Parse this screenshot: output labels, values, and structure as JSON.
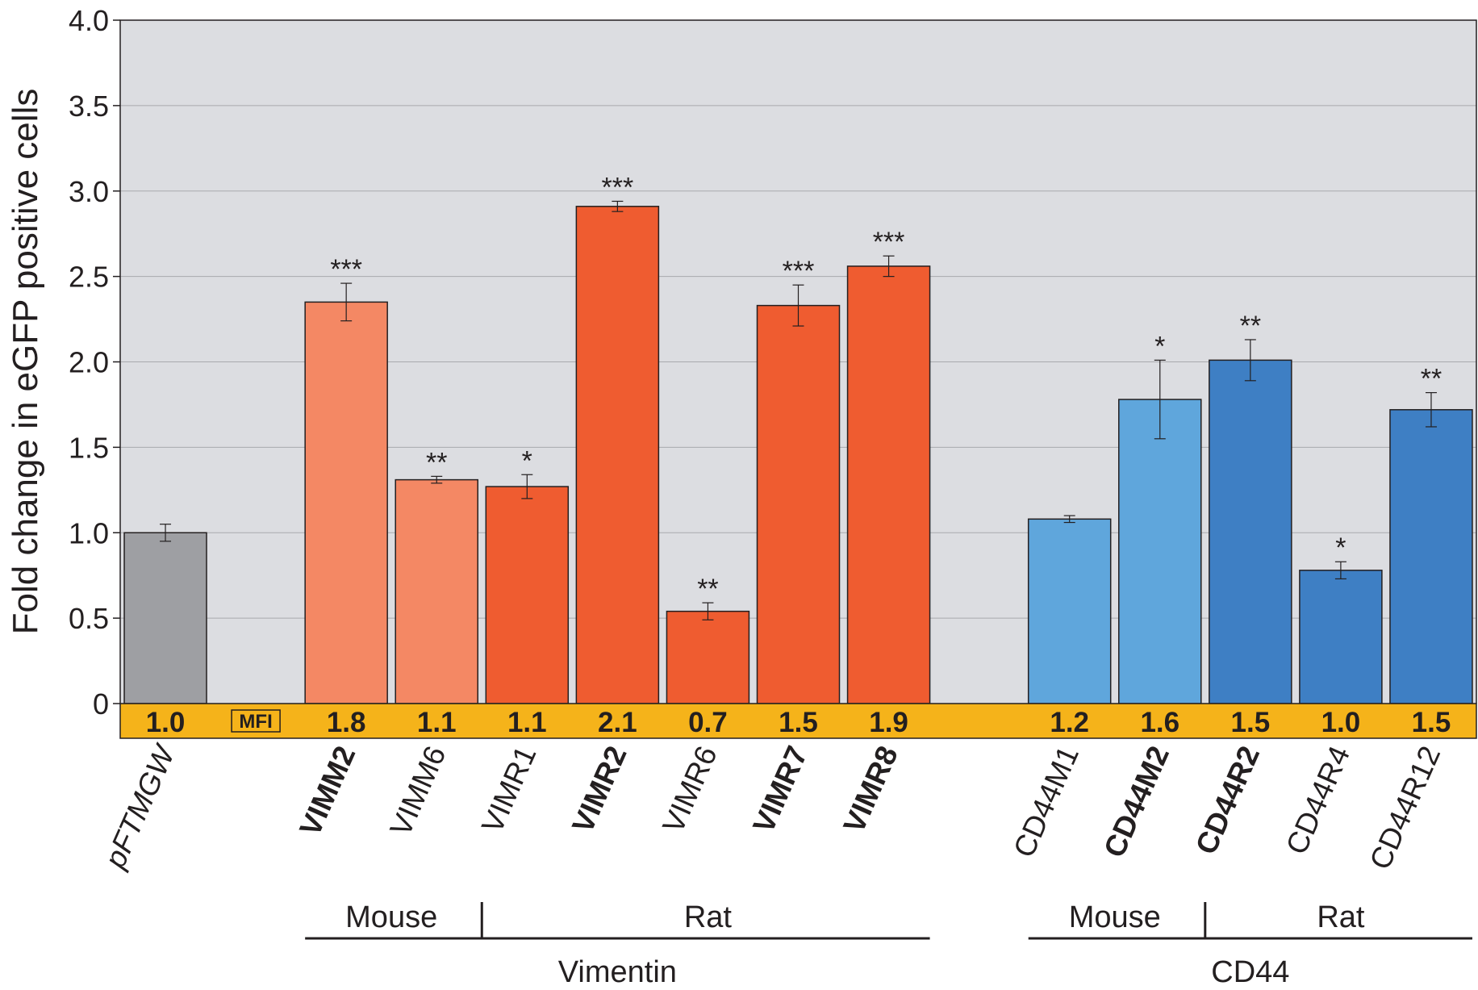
{
  "chart_data": {
    "type": "bar",
    "ylabel": "Fold change in eGFP positive cells",
    "ylim": [
      0,
      4.0
    ],
    "yticks": [
      "0",
      "0.5",
      "1.0",
      "1.5",
      "2.0",
      "2.5",
      "3.0",
      "3.5",
      "4.0"
    ],
    "grid": true,
    "mfi_label": "MFI",
    "categories": [
      "pFTMGW",
      "",
      "VIMM2",
      "VIMM6",
      "VIMR1",
      "VIMR2",
      "VIMR6",
      "VIMR7",
      "VIMR8",
      "",
      "CD44M1",
      "CD44M2",
      "CD44R2",
      "CD44R4",
      "CD44R12"
    ],
    "bars": [
      {
        "label": "pFTMGW",
        "value": 1.0,
        "error": 0.05,
        "sig": "",
        "mfi": "1.0",
        "bold": false,
        "color": "#9e9fa3"
      },
      {
        "label": "",
        "value": null,
        "error": null,
        "sig": "",
        "mfi": "",
        "bold": false,
        "color": ""
      },
      {
        "label": "VIMM2",
        "value": 2.35,
        "error": 0.11,
        "sig": "***",
        "mfi": "1.8",
        "bold": true,
        "color": "#f48864"
      },
      {
        "label": "VIMM6",
        "value": 1.31,
        "error": 0.02,
        "sig": "**",
        "mfi": "1.1",
        "bold": false,
        "color": "#f48864"
      },
      {
        "label": "VIMR1",
        "value": 1.27,
        "error": 0.07,
        "sig": "*",
        "mfi": "1.1",
        "bold": false,
        "color": "#ef5c30"
      },
      {
        "label": "VIMR2",
        "value": 2.91,
        "error": 0.03,
        "sig": "***",
        "mfi": "2.1",
        "bold": true,
        "color": "#ef5c30"
      },
      {
        "label": "VIMR6",
        "value": 0.54,
        "error": 0.05,
        "sig": "**",
        "mfi": "0.7",
        "bold": false,
        "color": "#ef5c30"
      },
      {
        "label": "VIMR7",
        "value": 2.33,
        "error": 0.12,
        "sig": "***",
        "mfi": "1.5",
        "bold": true,
        "color": "#ef5c30"
      },
      {
        "label": "VIMR8",
        "value": 2.56,
        "error": 0.06,
        "sig": "***",
        "mfi": "1.9",
        "bold": true,
        "color": "#ef5c30"
      },
      {
        "label": "",
        "value": null,
        "error": null,
        "sig": "",
        "mfi": "",
        "bold": false,
        "color": ""
      },
      {
        "label": "CD44M1",
        "value": 1.08,
        "error": 0.02,
        "sig": "",
        "mfi": "1.2",
        "bold": false,
        "color": "#5fa6dc"
      },
      {
        "label": "CD44M2",
        "value": 1.78,
        "error": 0.23,
        "sig": "*",
        "mfi": "1.6",
        "bold": true,
        "color": "#5fa6dc"
      },
      {
        "label": "CD44R2",
        "value": 2.01,
        "error": 0.12,
        "sig": "**",
        "mfi": "1.5",
        "bold": true,
        "color": "#3e7fc4"
      },
      {
        "label": "CD44R4",
        "value": 0.78,
        "error": 0.05,
        "sig": "*",
        "mfi": "1.0",
        "bold": false,
        "color": "#3e7fc4"
      },
      {
        "label": "CD44R12",
        "value": 1.72,
        "error": 0.1,
        "sig": "**",
        "mfi": "1.5",
        "bold": false,
        "color": "#3e7fc4"
      }
    ],
    "groups": [
      {
        "name": "Vimentin",
        "start": 2,
        "end": 8,
        "subgroups": [
          {
            "name": "Mouse",
            "start": 2,
            "end": 3
          },
          {
            "name": "Rat",
            "start": 4,
            "end": 8
          }
        ]
      },
      {
        "name": "CD44",
        "start": 10,
        "end": 14,
        "subgroups": [
          {
            "name": "Mouse",
            "start": 10,
            "end": 11
          },
          {
            "name": "Rat",
            "start": 12,
            "end": 14
          }
        ]
      }
    ],
    "colors": {
      "plot_background": "#dcdde1",
      "mfi_band": "#f5b31a",
      "grid": "#a8a9ad"
    }
  }
}
